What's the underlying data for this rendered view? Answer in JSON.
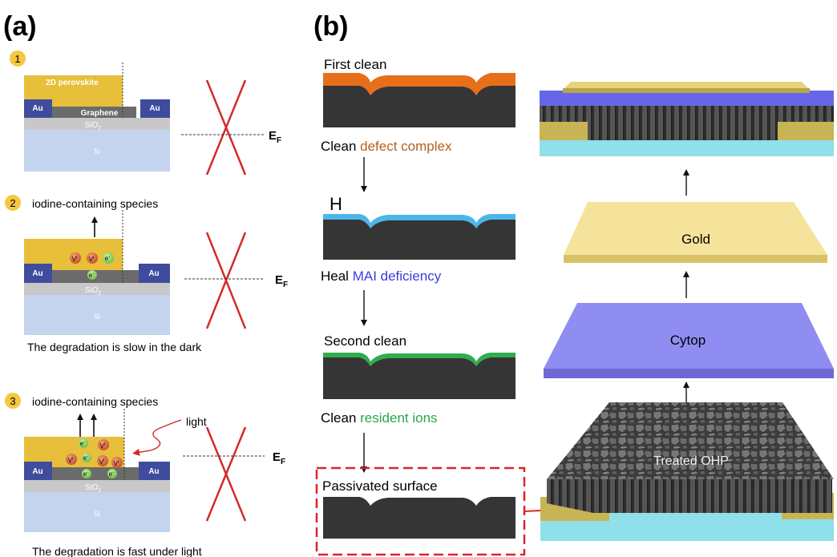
{
  "panel_a": {
    "label": "(a)",
    "step1": {
      "number": "1",
      "layer_perovskite": "2D perovskite",
      "layer_graphene": "Graphene",
      "layer_sio2": "SiO",
      "layer_sio2_sub": "2",
      "layer_si": "Si",
      "electrode": "Au",
      "fermi": "E",
      "fermi_sub": "F"
    },
    "step2": {
      "number": "2",
      "species": "iodine-containing species",
      "ion_vacancy": "V",
      "ion_vacancy_sup": "I",
      "electron": "e",
      "electron_sup": "-",
      "electrode": "Au",
      "layer_sio2": "SiO",
      "layer_sio2_sub": "2",
      "layer_si": "Si",
      "fermi": "E",
      "fermi_sub": "F",
      "caption": "The degradation is slow in the dark"
    },
    "step3": {
      "number": "3",
      "species": "iodine-containing species",
      "light": "light",
      "ion_vacancy": "V",
      "ion_vacancy_sup": "I",
      "electron": "e",
      "electron_sup": "-",
      "electrode": "Au",
      "layer_sio2": "SiO",
      "layer_sio2_sub": "2",
      "layer_si": "Si",
      "fermi": "E",
      "fermi_sub": "F",
      "caption": "The degradation is fast under light"
    }
  },
  "panel_b": {
    "label": "(b)",
    "stage1_title": "First clean",
    "step1_prefix": "Clean ",
    "step1_highlight": "defect complex",
    "stage2_title": "H",
    "step2_prefix": "Heal ",
    "step2_highlight": "MAI deficiency",
    "stage3_title": "Second clean",
    "step3_prefix": "Clean ",
    "step3_highlight": "resident ions",
    "stage4_title": "Passivated surface",
    "stack_gold": "Gold",
    "stack_cytop": "Cytop",
    "stack_treated": "Treated OHP"
  },
  "colors": {
    "perovskite": "#e8bf3a",
    "au": "#3f4c9e",
    "graphene": "#6b6b6b",
    "sio2": "#c8c8c8",
    "si": "#c4d3ee",
    "cross": "#d42a2a",
    "orange": "#e76f1a",
    "blue_layer": "#4bb7e8",
    "green_layer": "#2fae4b",
    "defect_text": "#b5601a",
    "mai_text": "#3b3be0",
    "ions_text": "#27a84a",
    "cytop": "#8f8cf2",
    "gold_layer": "#f5e39c",
    "highlight_box": "#d8262a"
  }
}
